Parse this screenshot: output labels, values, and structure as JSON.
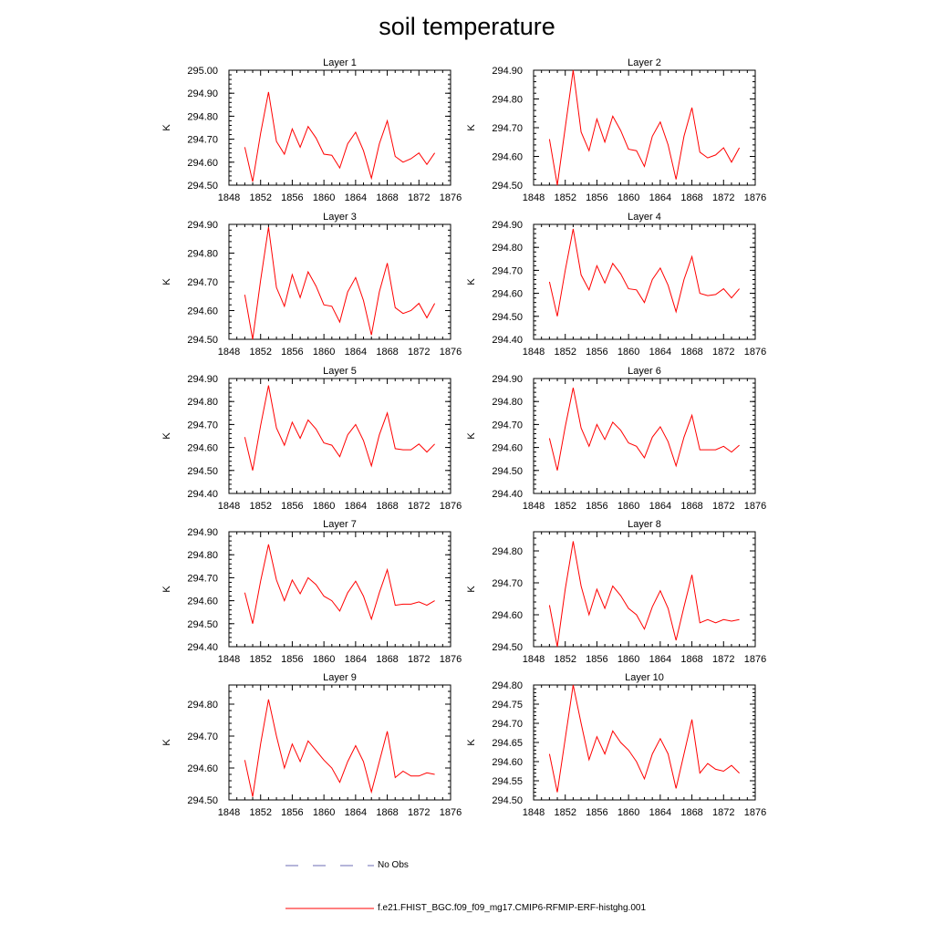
{
  "page": {
    "title": "soil temperature"
  },
  "legend": {
    "obs_label": "No Obs",
    "obs_color": "#6b6bb5",
    "model_label": "f.e21.FHIST_BGC.f09_f09_mg17.CMIP6-RFMIP-ERF-histghg.001",
    "model_color": "#ff0000"
  },
  "chart_data": [
    {
      "type": "line",
      "title": "Layer 1",
      "ylabel": "K",
      "xlim": [
        1848,
        1876
      ],
      "ylim": [
        294.5,
        295.0
      ],
      "yticks": [
        294.5,
        294.6,
        294.7,
        294.8,
        294.9,
        295.0
      ],
      "xticks": [
        1848,
        1852,
        1856,
        1860,
        1864,
        1868,
        1872,
        1876
      ],
      "x": [
        1850,
        1851,
        1852,
        1853,
        1854,
        1855,
        1856,
        1857,
        1858,
        1859,
        1860,
        1861,
        1862,
        1863,
        1864,
        1865,
        1866,
        1867,
        1868,
        1869,
        1870,
        1871,
        1872,
        1873,
        1874
      ],
      "series": [
        {
          "name": "f.e21.FHIST_BGC.f09_f09_mg17.CMIP6-RFMIP-ERF-histghg.001",
          "values": [
            294.665,
            294.515,
            294.725,
            294.905,
            294.69,
            294.635,
            294.745,
            294.665,
            294.755,
            294.705,
            294.635,
            294.63,
            294.575,
            294.68,
            294.73,
            294.65,
            294.53,
            294.68,
            294.78,
            294.625,
            294.6,
            294.615,
            294.64,
            294.59,
            294.64
          ]
        }
      ]
    },
    {
      "type": "line",
      "title": "Layer 2",
      "ylabel": "K",
      "xlim": [
        1848,
        1876
      ],
      "ylim": [
        294.5,
        294.9
      ],
      "yticks": [
        294.5,
        294.6,
        294.7,
        294.8,
        294.9
      ],
      "xticks": [
        1848,
        1852,
        1856,
        1860,
        1864,
        1868,
        1872,
        1876
      ],
      "x": [
        1850,
        1851,
        1852,
        1853,
        1854,
        1855,
        1856,
        1857,
        1858,
        1859,
        1860,
        1861,
        1862,
        1863,
        1864,
        1865,
        1866,
        1867,
        1868,
        1869,
        1870,
        1871,
        1872,
        1873,
        1874
      ],
      "series": [
        {
          "name": "f.e21.FHIST_BGC.f09_f09_mg17.CMIP6-RFMIP-ERF-histghg.001",
          "values": [
            294.66,
            294.5,
            294.7,
            294.9,
            294.685,
            294.62,
            294.73,
            294.65,
            294.74,
            294.69,
            294.625,
            294.62,
            294.565,
            294.67,
            294.72,
            294.64,
            294.52,
            294.67,
            294.77,
            294.615,
            294.595,
            294.605,
            294.63,
            294.58,
            294.63
          ]
        }
      ]
    },
    {
      "type": "line",
      "title": "Layer 3",
      "ylabel": "K",
      "xlim": [
        1848,
        1876
      ],
      "ylim": [
        294.5,
        294.9
      ],
      "yticks": [
        294.5,
        294.6,
        294.7,
        294.8,
        294.9
      ],
      "xticks": [
        1848,
        1852,
        1856,
        1860,
        1864,
        1868,
        1872,
        1876
      ],
      "x": [
        1850,
        1851,
        1852,
        1853,
        1854,
        1855,
        1856,
        1857,
        1858,
        1859,
        1860,
        1861,
        1862,
        1863,
        1864,
        1865,
        1866,
        1867,
        1868,
        1869,
        1870,
        1871,
        1872,
        1873,
        1874
      ],
      "series": [
        {
          "name": "f.e21.FHIST_BGC.f09_f09_mg17.CMIP6-RFMIP-ERF-histghg.001",
          "values": [
            294.655,
            294.5,
            294.705,
            294.89,
            294.68,
            294.615,
            294.725,
            294.645,
            294.735,
            294.685,
            294.62,
            294.615,
            294.56,
            294.665,
            294.715,
            294.635,
            294.515,
            294.665,
            294.765,
            294.61,
            294.59,
            294.6,
            294.625,
            294.575,
            294.625
          ]
        }
      ]
    },
    {
      "type": "line",
      "title": "Layer 4",
      "ylabel": "K",
      "xlim": [
        1848,
        1876
      ],
      "ylim": [
        294.4,
        294.9
      ],
      "yticks": [
        294.4,
        294.5,
        294.6,
        294.7,
        294.8,
        294.9
      ],
      "xticks": [
        1848,
        1852,
        1856,
        1860,
        1864,
        1868,
        1872,
        1876
      ],
      "x": [
        1850,
        1851,
        1852,
        1853,
        1854,
        1855,
        1856,
        1857,
        1858,
        1859,
        1860,
        1861,
        1862,
        1863,
        1864,
        1865,
        1866,
        1867,
        1868,
        1869,
        1870,
        1871,
        1872,
        1873,
        1874
      ],
      "series": [
        {
          "name": "f.e21.FHIST_BGC.f09_f09_mg17.CMIP6-RFMIP-ERF-histghg.001",
          "values": [
            294.65,
            294.5,
            294.7,
            294.88,
            294.68,
            294.615,
            294.72,
            294.645,
            294.73,
            294.685,
            294.62,
            294.615,
            294.56,
            294.66,
            294.71,
            294.635,
            294.52,
            294.66,
            294.76,
            294.6,
            294.59,
            294.595,
            294.62,
            294.58,
            294.62
          ]
        }
      ]
    },
    {
      "type": "line",
      "title": "Layer 5",
      "ylabel": "K",
      "xlim": [
        1848,
        1876
      ],
      "ylim": [
        294.4,
        294.9
      ],
      "yticks": [
        294.4,
        294.5,
        294.6,
        294.7,
        294.8,
        294.9
      ],
      "xticks": [
        1848,
        1852,
        1856,
        1860,
        1864,
        1868,
        1872,
        1876
      ],
      "x": [
        1850,
        1851,
        1852,
        1853,
        1854,
        1855,
        1856,
        1857,
        1858,
        1859,
        1860,
        1861,
        1862,
        1863,
        1864,
        1865,
        1866,
        1867,
        1868,
        1869,
        1870,
        1871,
        1872,
        1873,
        1874
      ],
      "series": [
        {
          "name": "f.e21.FHIST_BGC.f09_f09_mg17.CMIP6-RFMIP-ERF-histghg.001",
          "values": [
            294.645,
            294.5,
            294.695,
            294.87,
            294.685,
            294.61,
            294.71,
            294.64,
            294.72,
            294.68,
            294.62,
            294.61,
            294.56,
            294.655,
            294.7,
            294.63,
            294.52,
            294.655,
            294.75,
            294.595,
            294.59,
            294.59,
            294.615,
            294.58,
            294.615
          ]
        }
      ]
    },
    {
      "type": "line",
      "title": "Layer 6",
      "ylabel": "K",
      "xlim": [
        1848,
        1876
      ],
      "ylim": [
        294.4,
        294.9
      ],
      "yticks": [
        294.4,
        294.5,
        294.6,
        294.7,
        294.8,
        294.9
      ],
      "xticks": [
        1848,
        1852,
        1856,
        1860,
        1864,
        1868,
        1872,
        1876
      ],
      "x": [
        1850,
        1851,
        1852,
        1853,
        1854,
        1855,
        1856,
        1857,
        1858,
        1859,
        1860,
        1861,
        1862,
        1863,
        1864,
        1865,
        1866,
        1867,
        1868,
        1869,
        1870,
        1871,
        1872,
        1873,
        1874
      ],
      "series": [
        {
          "name": "f.e21.FHIST_BGC.f09_f09_mg17.CMIP6-RFMIP-ERF-histghg.001",
          "values": [
            294.64,
            294.5,
            294.69,
            294.86,
            294.685,
            294.605,
            294.7,
            294.635,
            294.71,
            294.675,
            294.62,
            294.605,
            294.555,
            294.645,
            294.69,
            294.625,
            294.52,
            294.645,
            294.74,
            294.59,
            294.59,
            294.59,
            294.605,
            294.58,
            294.61
          ]
        }
      ]
    },
    {
      "type": "line",
      "title": "Layer 7",
      "ylabel": "K",
      "xlim": [
        1848,
        1876
      ],
      "ylim": [
        294.4,
        294.9
      ],
      "yticks": [
        294.4,
        294.5,
        294.6,
        294.7,
        294.8,
        294.9
      ],
      "xticks": [
        1848,
        1852,
        1856,
        1860,
        1864,
        1868,
        1872,
        1876
      ],
      "x": [
        1850,
        1851,
        1852,
        1853,
        1854,
        1855,
        1856,
        1857,
        1858,
        1859,
        1860,
        1861,
        1862,
        1863,
        1864,
        1865,
        1866,
        1867,
        1868,
        1869,
        1870,
        1871,
        1872,
        1873,
        1874
      ],
      "series": [
        {
          "name": "f.e21.FHIST_BGC.f09_f09_mg17.CMIP6-RFMIP-ERF-histghg.001",
          "values": [
            294.635,
            294.5,
            294.685,
            294.845,
            294.69,
            294.6,
            294.69,
            294.63,
            294.7,
            294.67,
            294.62,
            294.6,
            294.555,
            294.635,
            294.685,
            294.62,
            294.52,
            294.635,
            294.735,
            294.58,
            294.585,
            294.585,
            294.595,
            294.58,
            294.6
          ]
        }
      ]
    },
    {
      "type": "line",
      "title": "Layer 8",
      "ylabel": "K",
      "xlim": [
        1848,
        1876
      ],
      "ylim": [
        294.5,
        294.86
      ],
      "yticks": [
        294.5,
        294.6,
        294.7,
        294.8
      ],
      "xticks": [
        1848,
        1852,
        1856,
        1860,
        1864,
        1868,
        1872,
        1876
      ],
      "x": [
        1850,
        1851,
        1852,
        1853,
        1854,
        1855,
        1856,
        1857,
        1858,
        1859,
        1860,
        1861,
        1862,
        1863,
        1864,
        1865,
        1866,
        1867,
        1868,
        1869,
        1870,
        1871,
        1872,
        1873,
        1874
      ],
      "series": [
        {
          "name": "f.e21.FHIST_BGC.f09_f09_mg17.CMIP6-RFMIP-ERF-histghg.001",
          "values": [
            294.63,
            294.5,
            294.68,
            294.83,
            294.69,
            294.6,
            294.68,
            294.62,
            294.69,
            294.66,
            294.62,
            294.6,
            294.555,
            294.625,
            294.675,
            294.62,
            294.52,
            294.625,
            294.725,
            294.575,
            294.585,
            294.575,
            294.585,
            294.58,
            294.585
          ]
        }
      ]
    },
    {
      "type": "line",
      "title": "Layer 9",
      "ylabel": "K",
      "xlim": [
        1848,
        1876
      ],
      "ylim": [
        294.5,
        294.86
      ],
      "yticks": [
        294.5,
        294.6,
        294.7,
        294.8
      ],
      "xticks": [
        1848,
        1852,
        1856,
        1860,
        1864,
        1868,
        1872,
        1876
      ],
      "x": [
        1850,
        1851,
        1852,
        1853,
        1854,
        1855,
        1856,
        1857,
        1858,
        1859,
        1860,
        1861,
        1862,
        1863,
        1864,
        1865,
        1866,
        1867,
        1868,
        1869,
        1870,
        1871,
        1872,
        1873,
        1874
      ],
      "series": [
        {
          "name": "f.e21.FHIST_BGC.f09_f09_mg17.CMIP6-RFMIP-ERF-histghg.001",
          "values": [
            294.625,
            294.51,
            294.675,
            294.815,
            294.7,
            294.6,
            294.675,
            294.62,
            294.685,
            294.655,
            294.625,
            294.6,
            294.555,
            294.62,
            294.67,
            294.62,
            294.525,
            294.62,
            294.715,
            294.57,
            294.59,
            294.575,
            294.575,
            294.585,
            294.58
          ]
        }
      ]
    },
    {
      "type": "line",
      "title": "Layer 10",
      "ylabel": "K",
      "xlim": [
        1848,
        1876
      ],
      "ylim": [
        294.5,
        294.8
      ],
      "yticks": [
        294.5,
        294.55,
        294.6,
        294.65,
        294.7,
        294.75,
        294.8
      ],
      "xticks": [
        1848,
        1852,
        1856,
        1860,
        1864,
        1868,
        1872,
        1876
      ],
      "x": [
        1850,
        1851,
        1852,
        1853,
        1854,
        1855,
        1856,
        1857,
        1858,
        1859,
        1860,
        1861,
        1862,
        1863,
        1864,
        1865,
        1866,
        1867,
        1868,
        1869,
        1870,
        1871,
        1872,
        1873,
        1874
      ],
      "series": [
        {
          "name": "f.e21.FHIST_BGC.f09_f09_mg17.CMIP6-RFMIP-ERF-histghg.001",
          "values": [
            294.62,
            294.52,
            294.66,
            294.8,
            294.7,
            294.605,
            294.665,
            294.62,
            294.68,
            294.65,
            294.63,
            294.6,
            294.555,
            294.62,
            294.66,
            294.62,
            294.53,
            294.62,
            294.71,
            294.57,
            294.595,
            294.58,
            294.575,
            294.59,
            294.57
          ]
        }
      ]
    }
  ]
}
